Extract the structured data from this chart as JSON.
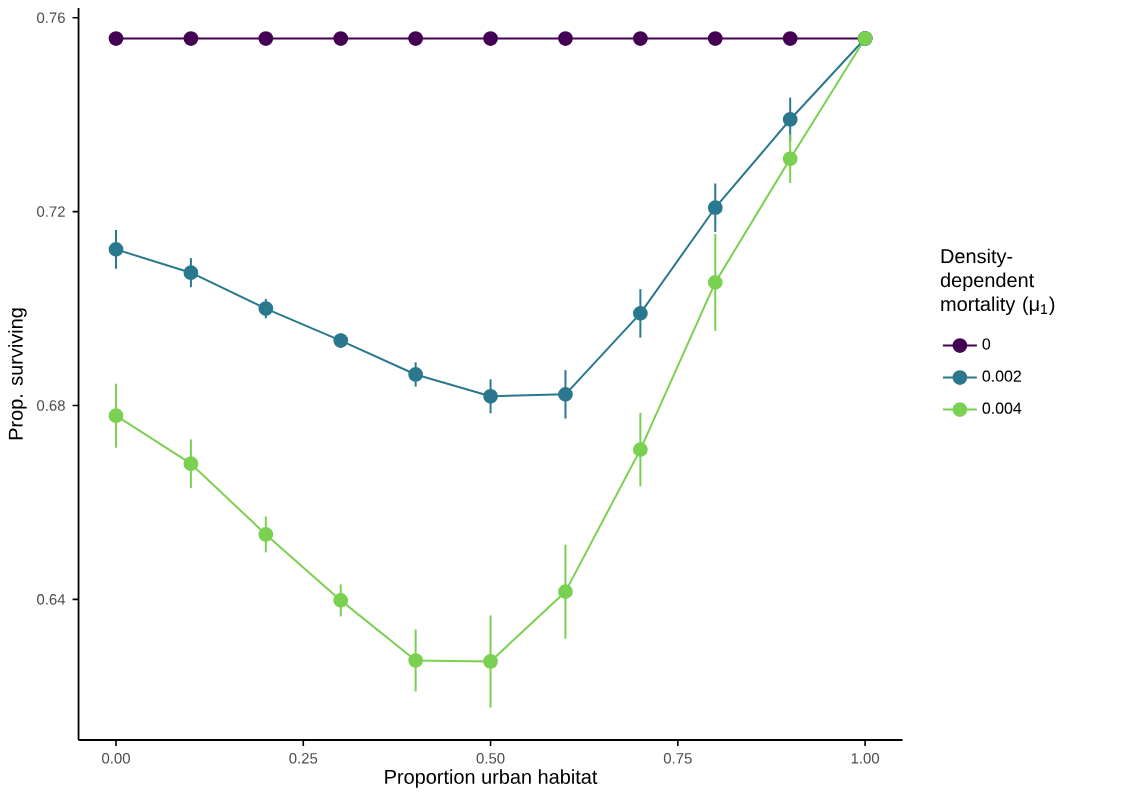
{
  "chart_data": {
    "type": "line",
    "xlabel": "Proportion urban habitat",
    "ylabel": "Prop. surviving",
    "legend_title": "Density-dependent mortality (μ$_{1}$)",
    "x": [
      0.0,
      0.1,
      0.2,
      0.3,
      0.4,
      0.5,
      0.6,
      0.7,
      0.8,
      0.9,
      1.0
    ],
    "series": [
      {
        "name": "0",
        "color": "#440154",
        "values": [
          0.7557,
          0.7557,
          0.7557,
          0.7557,
          0.7557,
          0.7557,
          0.7557,
          0.7557,
          0.7557,
          0.7557,
          0.7557
        ]
      },
      {
        "name": "0.002",
        "color": "#2a788e",
        "values": [
          0.7122,
          0.7074,
          0.7,
          0.6934,
          0.6864,
          0.6819,
          0.6823,
          0.699,
          0.7208,
          0.739,
          0.7557
        ],
        "errors": [
          0.004,
          0.003,
          0.002,
          0.0015,
          0.0025,
          0.0035,
          0.005,
          0.005,
          0.005,
          0.0045,
          null
        ]
      },
      {
        "name": "0.004",
        "color": "#7ad151",
        "values": [
          0.6779,
          0.668,
          0.6534,
          0.6398,
          0.6274,
          0.6272,
          0.6416,
          0.6709,
          0.7054,
          0.7309,
          0.7557
        ],
        "errors": [
          0.0066,
          0.005,
          0.0037,
          0.0033,
          0.0064,
          0.0095,
          0.0097,
          0.0076,
          0.01,
          0.005,
          null
        ]
      }
    ],
    "xlim": [
      -0.05,
      1.05
    ],
    "ylim": [
      0.611,
      0.762
    ],
    "xticks": [
      {
        "value": 0,
        "label": "0.00"
      },
      {
        "value": 0.25,
        "label": "0.25"
      },
      {
        "value": 0.5,
        "label": "0.50"
      },
      {
        "value": 0.75,
        "label": "0.75"
      },
      {
        "value": 1,
        "label": "1.00"
      }
    ],
    "yticks": [
      0.64,
      0.68,
      0.72,
      0.76
    ],
    "legend": "right",
    "marker": "circle",
    "line_style": "solid",
    "grid": false
  }
}
